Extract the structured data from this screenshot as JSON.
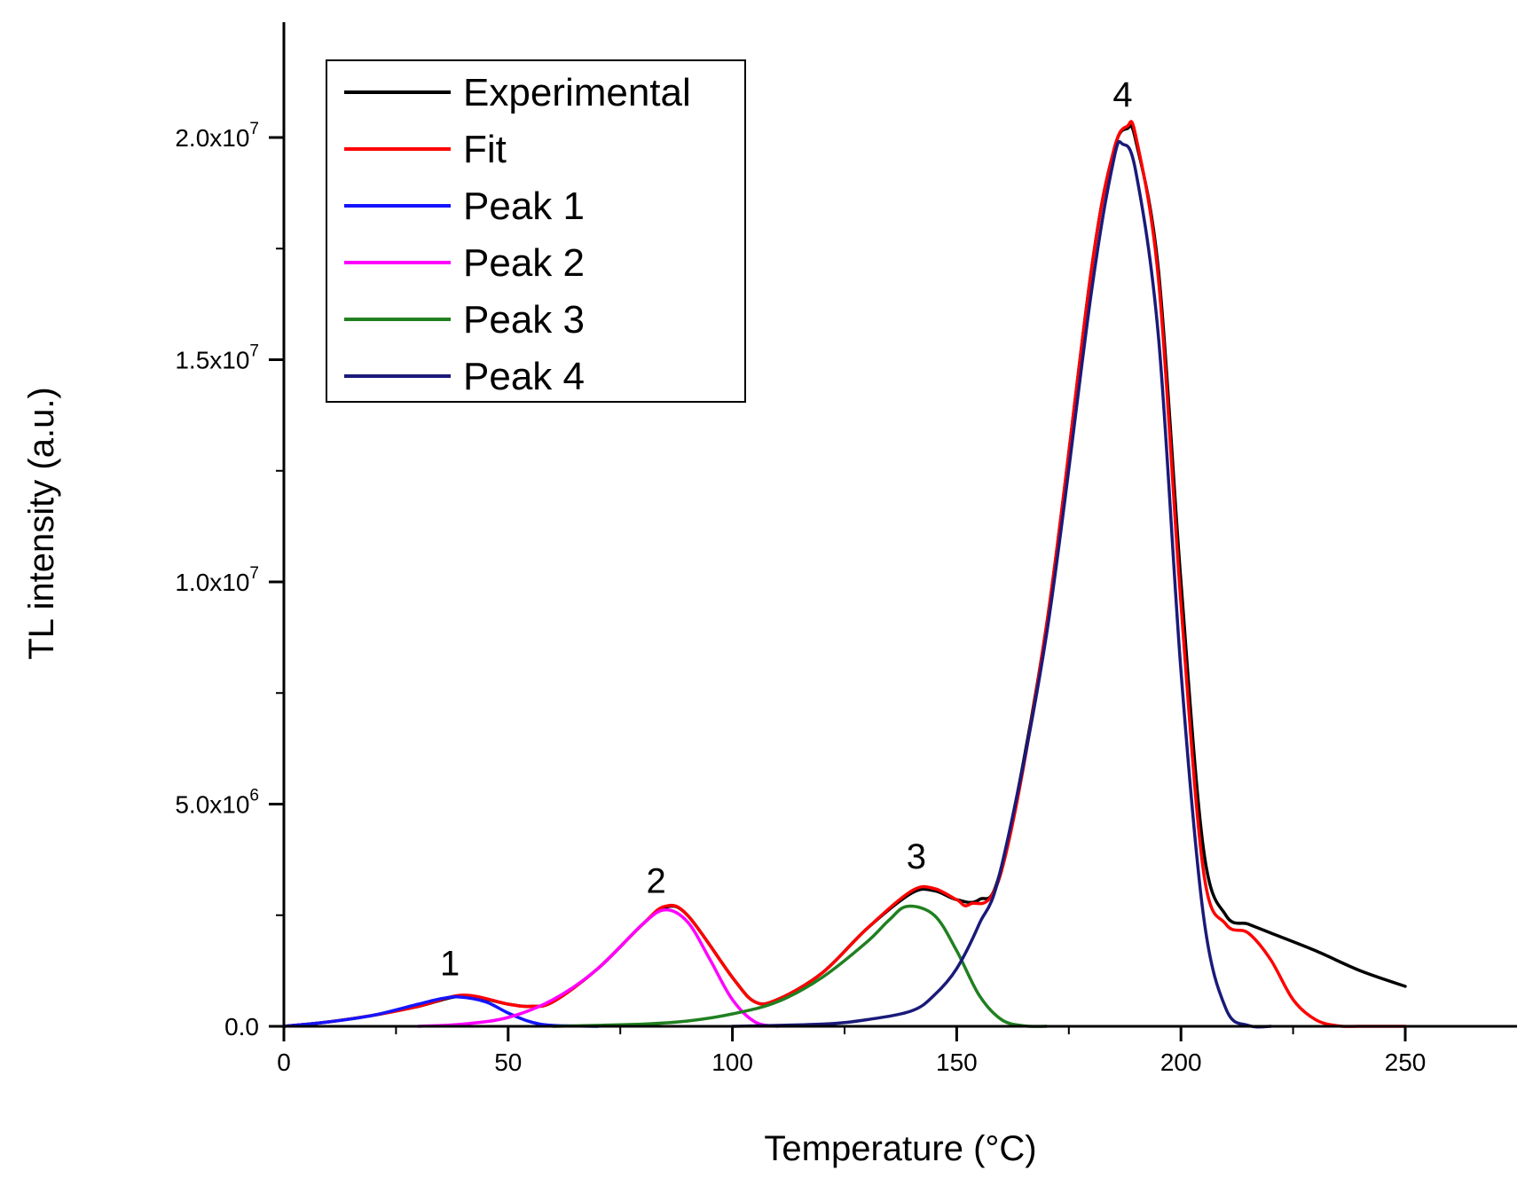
{
  "chart_data": {
    "type": "line",
    "title": "",
    "xlabel": "Temperature (°C)",
    "ylabel": "TL intensity (a.u.)",
    "xlim": [
      0,
      275
    ],
    "ylim": [
      0,
      22500000
    ],
    "x_ticks": [
      0,
      50,
      100,
      150,
      200,
      250
    ],
    "x_tick_labels": [
      "0",
      "50",
      "100",
      "150",
      "200",
      "250"
    ],
    "y_ticks": [
      0,
      5000000,
      10000000,
      15000000,
      20000000
    ],
    "y_tick_labels": [
      {
        "mantissa": "0.0",
        "exponent": ""
      },
      {
        "mantissa": "5.0x10",
        "exponent": "6"
      },
      {
        "mantissa": "1.0x10",
        "exponent": "7"
      },
      {
        "mantissa": "1.5x10",
        "exponent": "7"
      },
      {
        "mantissa": "2.0x10",
        "exponent": "7"
      }
    ],
    "legend_position": "top-left",
    "series": [
      {
        "name": "Experimental",
        "color": "#000000",
        "x": [
          0,
          10,
          20,
          30,
          40,
          50,
          55,
          60,
          70,
          80,
          85,
          90,
          100,
          105,
          110,
          120,
          130,
          140,
          145,
          150,
          155,
          160,
          170,
          180,
          185,
          188,
          190,
          195,
          200,
          205,
          210,
          215,
          220,
          230,
          240,
          250
        ],
        "y": [
          0,
          100000,
          250000,
          450000,
          680000,
          500000,
          450000,
          550000,
          1300000,
          2300000,
          2680000,
          2500000,
          1100000,
          550000,
          600000,
          1200000,
          2200000,
          3000000,
          3050000,
          2850000,
          2850000,
          3600000,
          9000000,
          17000000,
          19700000,
          20200000,
          19900000,
          17000000,
          10000000,
          4000000,
          2500000,
          2300000,
          2100000,
          1700000,
          1250000,
          900000
        ]
      },
      {
        "name": "Fit",
        "color": "#ff0000",
        "x": [
          0,
          10,
          20,
          30,
          40,
          50,
          55,
          60,
          70,
          80,
          85,
          90,
          100,
          105,
          110,
          120,
          130,
          140,
          145,
          150,
          153,
          160,
          170,
          180,
          185,
          188,
          190,
          195,
          200,
          205,
          210,
          215,
          220,
          225,
          230,
          235,
          240,
          250
        ],
        "y": [
          0,
          100000,
          250000,
          450000,
          700000,
          500000,
          450000,
          550000,
          1300000,
          2300000,
          2700000,
          2500000,
          1100000,
          550000,
          600000,
          1200000,
          2200000,
          3050000,
          3100000,
          2850000,
          2750000,
          3500000,
          9000000,
          17000000,
          19700000,
          20250000,
          20000000,
          16800000,
          9500000,
          3500000,
          2300000,
          2100000,
          1500000,
          600000,
          150000,
          10000,
          0,
          0
        ]
      },
      {
        "name": "Peak 1",
        "color": "#1515ff",
        "x": [
          0,
          10,
          20,
          30,
          35,
          39,
          45,
          50,
          55,
          60,
          70
        ],
        "y": [
          0,
          100000,
          250000,
          500000,
          620000,
          660000,
          550000,
          300000,
          100000,
          20000,
          0
        ]
      },
      {
        "name": "Peak 2",
        "color": "#ff00ff",
        "x": [
          30,
          40,
          50,
          60,
          70,
          80,
          85,
          90,
          95,
          100,
          105,
          110
        ],
        "y": [
          0,
          50000,
          200000,
          600000,
          1300000,
          2300000,
          2620000,
          2350000,
          1500000,
          600000,
          100000,
          0
        ]
      },
      {
        "name": "Peak 3",
        "color": "#208020",
        "x": [
          60,
          80,
          90,
          100,
          110,
          120,
          130,
          135,
          139,
          145,
          150,
          155,
          160,
          165,
          170
        ],
        "y": [
          0,
          50000,
          120000,
          280000,
          550000,
          1100000,
          1900000,
          2400000,
          2700000,
          2500000,
          1700000,
          700000,
          150000,
          10000,
          0
        ]
      },
      {
        "name": "Peak 4",
        "color": "#1a1a7a",
        "x": [
          100,
          120,
          130,
          140,
          145,
          150,
          155,
          160,
          170,
          180,
          185,
          187,
          190,
          195,
          200,
          205,
          210,
          215,
          220
        ],
        "y": [
          0,
          50000,
          150000,
          350000,
          700000,
          1300000,
          2300000,
          3600000,
          8800000,
          16500000,
          19500000,
          19850000,
          19200000,
          15500000,
          8000000,
          2500000,
          400000,
          20000,
          0
        ]
      }
    ],
    "annotations": [
      {
        "text": "1",
        "x": 37,
        "y": 1150000
      },
      {
        "text": "2",
        "x": 83,
        "y": 3000000
      },
      {
        "text": "3",
        "x": 141,
        "y": 3550000
      },
      {
        "text": "4",
        "x": 187,
        "y": 20700000
      }
    ]
  }
}
